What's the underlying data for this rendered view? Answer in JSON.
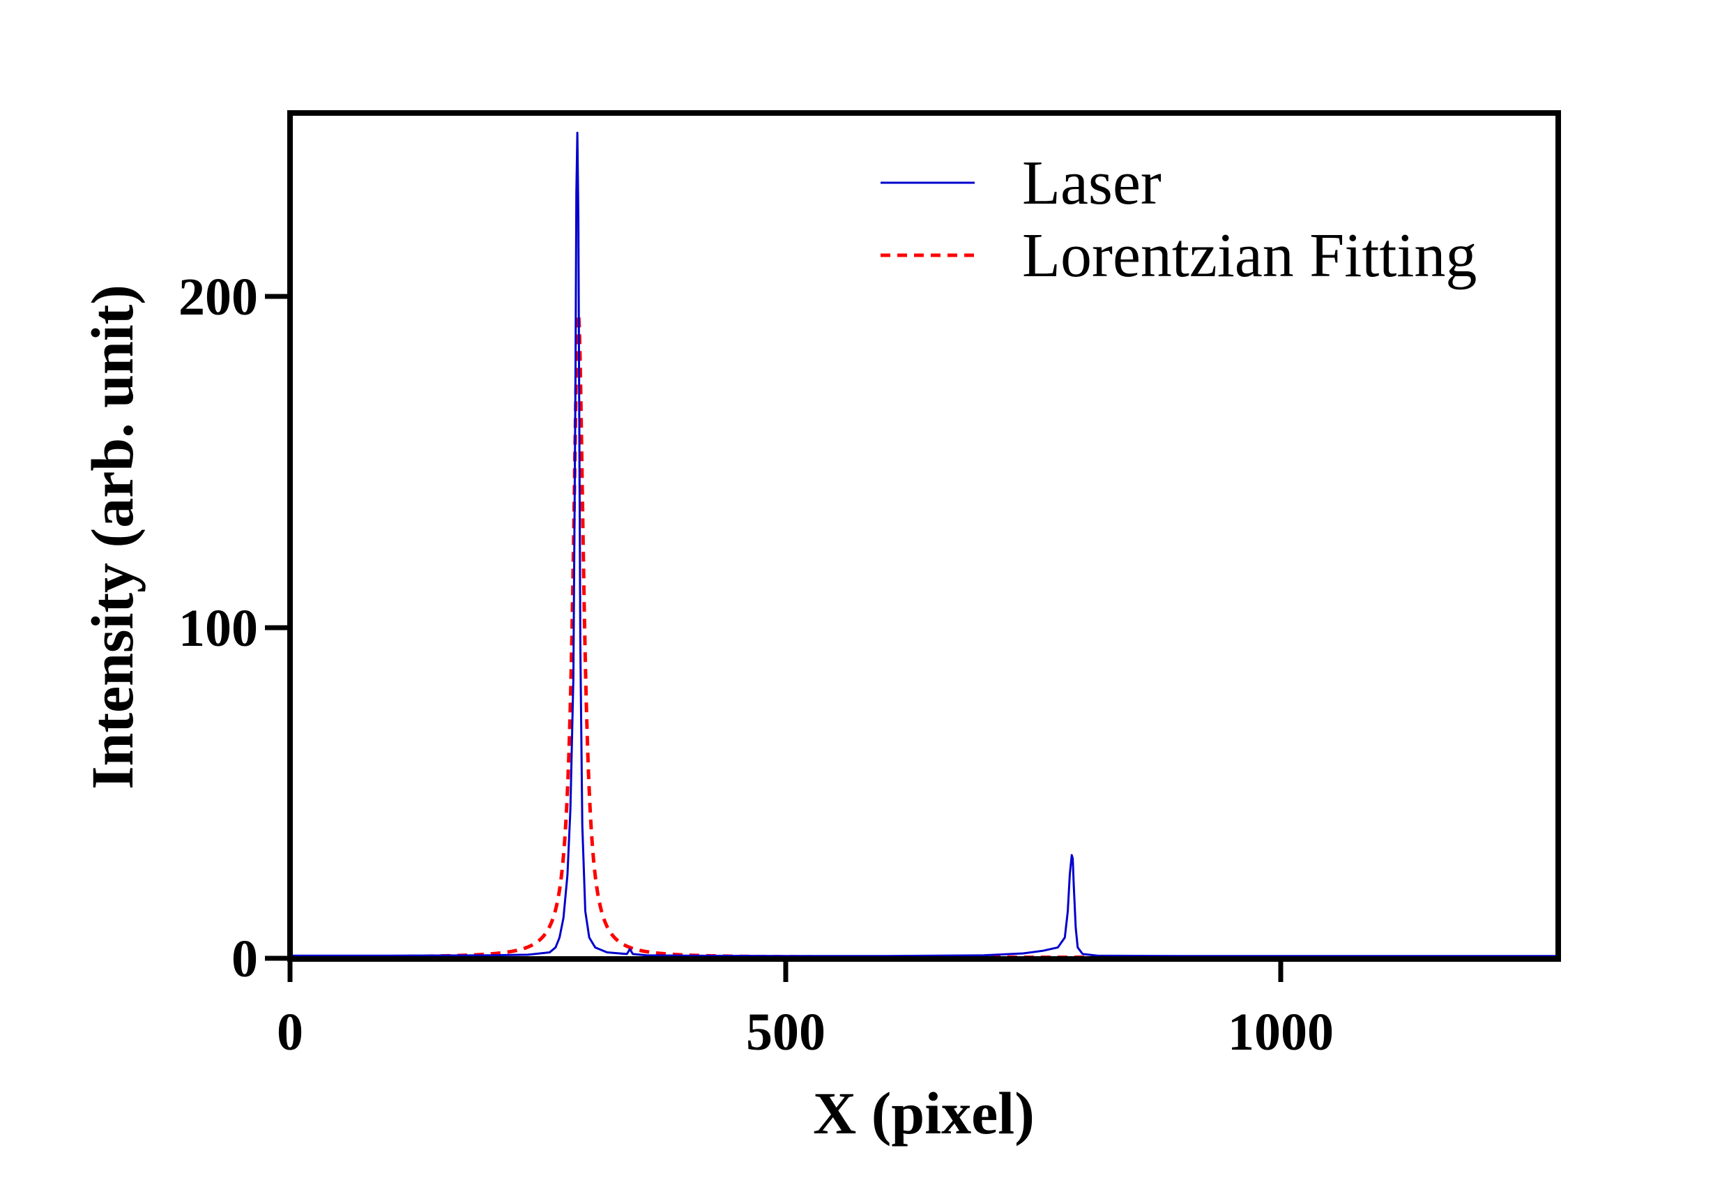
{
  "chart_data": {
    "type": "line",
    "xlabel": "X (pixel)",
    "ylabel": "Intensity (arb. unit)",
    "xlim": [
      0,
      1280
    ],
    "ylim": [
      -0.5,
      256
    ],
    "xticks": [
      0,
      500,
      1000
    ],
    "xtick_labels": [
      "0",
      "500",
      "1000"
    ],
    "yticks": [
      0,
      100,
      200
    ],
    "ytick_labels": [
      "0",
      "100",
      "200"
    ],
    "grid": false,
    "legend_position": "top-right",
    "series": [
      {
        "name": "Laser",
        "style": "solid",
        "color": "#0000cc",
        "x": [
          0,
          100,
          200,
          240,
          262,
          268,
          272,
          276,
          280,
          283,
          286,
          288,
          289,
          290,
          291,
          292,
          293,
          295,
          298,
          302,
          308,
          320,
          340,
          343,
          346,
          360,
          400,
          500,
          600,
          700,
          740,
          760,
          775,
          782,
          785,
          787,
          789,
          790,
          791,
          793,
          795,
          800,
          815,
          900,
          1000,
          1100,
          1200,
          1280
        ],
        "y": [
          0.5,
          0.5,
          0.6,
          0.8,
          1.5,
          3,
          6,
          12,
          25,
          45,
          85,
          170,
          232,
          250,
          225,
          160,
          95,
          40,
          14,
          6,
          3,
          1.5,
          1,
          2.5,
          1,
          0.6,
          0.5,
          0.4,
          0.4,
          0.6,
          1.2,
          2,
          3,
          6,
          14,
          25,
          31,
          30,
          22,
          9,
          3,
          1,
          0.5,
          0.4,
          0.4,
          0.4,
          0.4,
          0.4
        ]
      },
      {
        "name": "Lorentzian Fitting",
        "style": "dashed",
        "color": "#ff0000",
        "x0": 291,
        "amplitude": 195,
        "hwhm": 6.5
      }
    ]
  }
}
